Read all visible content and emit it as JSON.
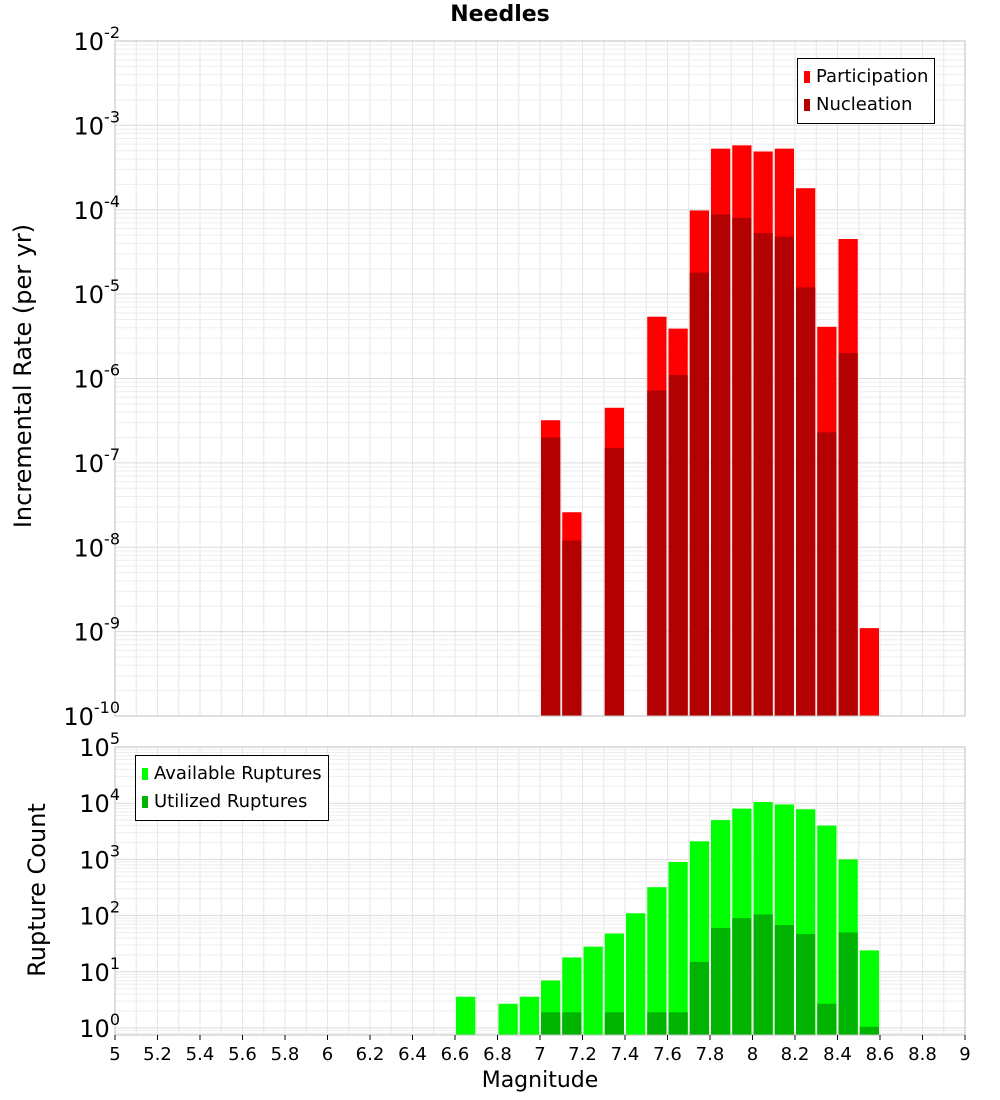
{
  "chart_data": [
    {
      "type": "bar",
      "title": "Needles",
      "ylabel": "Incremental Rate (per yr)",
      "xlabel": "",
      "yscale": "log",
      "ylim": [
        1e-10,
        0.01
      ],
      "xlim": [
        5,
        9
      ],
      "grid": true,
      "legend_position": "top-right",
      "legend": [
        "Participation",
        "Nucleation"
      ],
      "y_ticks": [
        {
          "base": "10",
          "exp": "-2"
        },
        {
          "base": "10",
          "exp": "-3"
        },
        {
          "base": "10",
          "exp": "-4"
        },
        {
          "base": "10",
          "exp": "-5"
        },
        {
          "base": "10",
          "exp": "-6"
        },
        {
          "base": "10",
          "exp": "-7"
        },
        {
          "base": "10",
          "exp": "-8"
        },
        {
          "base": "10",
          "exp": "-9"
        },
        {
          "base": "10",
          "exp": "-10"
        }
      ],
      "colors": {
        "participation": "#ff0000",
        "nucleation": "#b30000"
      },
      "x": [
        7.05,
        7.15,
        7.35,
        7.55,
        7.65,
        7.75,
        7.85,
        7.95,
        8.05,
        8.15,
        8.25,
        8.35,
        8.45,
        8.55
      ],
      "series": [
        {
          "name": "Participation",
          "values": [
            3.2e-07,
            2.6e-08,
            4.5e-07,
            5.4e-06,
            3.9e-06,
            9.8e-05,
            0.00053,
            0.00058,
            0.00049,
            0.00053,
            0.00018,
            4.1e-06,
            4.5e-05,
            1.1e-09
          ]
        },
        {
          "name": "Nucleation",
          "values": [
            2e-07,
            1.2e-08,
            1.5e-07,
            7.2e-07,
            1.1e-06,
            1.8e-05,
            8.8e-05,
            8e-05,
            5.3e-05,
            4.8e-05,
            1.2e-05,
            2.3e-07,
            2e-06,
            null
          ]
        }
      ]
    },
    {
      "type": "bar",
      "title": "",
      "ylabel": "Rupture Count",
      "xlabel": "Magnitude",
      "yscale": "log",
      "ylim": [
        0.75,
        100000.0
      ],
      "xlim": [
        5,
        9
      ],
      "grid": true,
      "legend_position": "top-left",
      "legend": [
        "Available Ruptures",
        "Utilized Ruptures"
      ],
      "y_ticks": [
        {
          "base": "10",
          "exp": "5",
          "v": 100000
        },
        {
          "base": "10",
          "exp": "4",
          "v": 10000
        },
        {
          "base": "10",
          "exp": "3",
          "v": 1000
        },
        {
          "base": "10",
          "exp": "2",
          "v": 100
        },
        {
          "base": "10",
          "exp": "1",
          "v": 10
        },
        {
          "base": "10",
          "exp": "0",
          "v": 1
        }
      ],
      "x_ticks": [
        "5",
        "5.2",
        "5.4",
        "5.6",
        "5.8",
        "6",
        "6.2",
        "6.4",
        "6.6",
        "6.8",
        "7",
        "7.2",
        "7.4",
        "7.6",
        "7.8",
        "8",
        "8.2",
        "8.4",
        "8.6",
        "8.8",
        "9"
      ],
      "colors": {
        "available": "#00ff00",
        "utilized": "#00b300"
      },
      "x": [
        6.65,
        6.85,
        6.95,
        7.05,
        7.15,
        7.25,
        7.35,
        7.45,
        7.55,
        7.65,
        7.75,
        7.85,
        7.95,
        8.05,
        8.15,
        8.25,
        8.35,
        8.45,
        8.55
      ],
      "series": [
        {
          "name": "Available Ruptures",
          "values": [
            3.6,
            2.7,
            3.6,
            7,
            18,
            28,
            48,
            110,
            320,
            900,
            2100,
            5000,
            8000,
            10500,
            9500,
            7800,
            4000,
            1000,
            24
          ]
        },
        {
          "name": "Utilized Ruptures",
          "values": [
            null,
            null,
            null,
            1.9,
            1.9,
            null,
            1.9,
            null,
            1.9,
            1.9,
            15,
            60,
            90,
            105,
            68,
            47,
            2.7,
            50,
            1.05
          ]
        }
      ]
    }
  ]
}
